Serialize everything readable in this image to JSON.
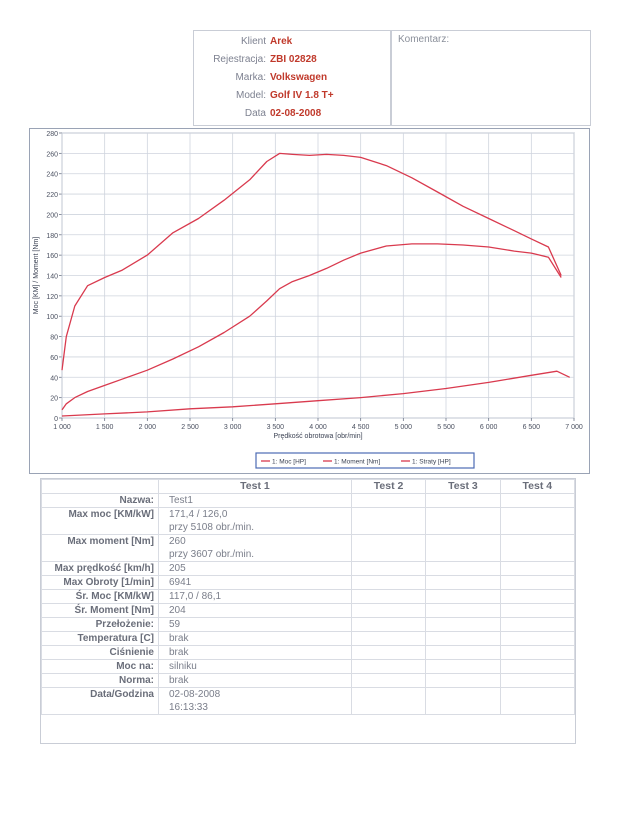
{
  "header": {
    "rows": [
      {
        "label": "Klient",
        "value": "Arek"
      },
      {
        "label": "Rejestracja:",
        "value": "ZBI 02828"
      },
      {
        "label": "Marka:",
        "value": "Volkswagen"
      },
      {
        "label": "Model:",
        "value": "Golf IV 1.8 T+"
      },
      {
        "label": "Data",
        "value": "02-08-2008"
      }
    ],
    "comment_label": "Komentarz:"
  },
  "chart_data": {
    "type": "line",
    "xlabel": "Prędkość obrotowa [obr/min]",
    "ylabel": "Moc [KM] / Moment [Nm]",
    "xlim": [
      1000,
      7000
    ],
    "ylim": [
      0,
      280
    ],
    "x_ticks": [
      1000,
      1500,
      2000,
      2500,
      3000,
      3500,
      4000,
      4500,
      5000,
      5500,
      6000,
      6500,
      7000
    ],
    "x_tick_labels": [
      "1 000",
      "1 500",
      "2 000",
      "2 500",
      "3 000",
      "3 500",
      "4 000",
      "4 500",
      "5 000",
      "5 500",
      "6 000",
      "6 500",
      "7 000"
    ],
    "y_ticks": [
      0,
      20,
      40,
      60,
      80,
      100,
      120,
      140,
      160,
      180,
      200,
      220,
      240,
      260,
      280
    ],
    "grid": true,
    "legend_position": "bottom",
    "line_color": "#d93a4e",
    "series": [
      {
        "name": "1: Moc [HP]",
        "x": [
          1000,
          1050,
          1150,
          1300,
          1500,
          1700,
          2000,
          2300,
          2600,
          2900,
          3200,
          3400,
          3550,
          3700,
          3900,
          4100,
          4300,
          4500,
          4800,
          5100,
          5400,
          5700,
          6000,
          6300,
          6500,
          6700,
          6850
        ],
        "y": [
          8,
          14,
          20,
          26,
          32,
          38,
          47,
          58,
          70,
          84,
          100,
          115,
          127,
          134,
          140,
          147,
          155,
          162,
          169,
          171,
          171,
          170,
          168,
          164,
          162,
          158,
          138
        ]
      },
      {
        "name": "1: Moment [Nm]",
        "x": [
          1000,
          1050,
          1150,
          1300,
          1500,
          1700,
          2000,
          2300,
          2600,
          2900,
          3200,
          3400,
          3550,
          3700,
          3900,
          4100,
          4300,
          4500,
          4800,
          5100,
          5400,
          5700,
          6000,
          6300,
          6500,
          6700,
          6850
        ],
        "y": [
          47,
          80,
          110,
          130,
          138,
          145,
          160,
          182,
          196,
          214,
          234,
          252,
          260,
          259,
          258,
          259,
          258,
          256,
          248,
          236,
          222,
          208,
          196,
          184,
          176,
          168,
          140
        ]
      },
      {
        "name": "1: Straty [HP]",
        "x": [
          1000,
          1500,
          2000,
          2500,
          3000,
          3500,
          4000,
          4500,
          5000,
          5500,
          6000,
          6500,
          6800,
          6950
        ],
        "y": [
          2,
          4,
          6,
          9,
          11,
          14,
          17,
          20,
          24,
          29,
          35,
          42,
          46,
          40
        ]
      }
    ]
  },
  "results": {
    "headers": [
      "Test 1",
      "Test 2",
      "Test 3",
      "Test 4"
    ],
    "rows": [
      {
        "label": "Nazwa:",
        "value": "Test1"
      },
      {
        "label": "Max moc [KM/kW]",
        "value": "171,4 / 126,0",
        "value2": "przy 5108 obr./min."
      },
      {
        "label": "Max moment [Nm]",
        "value": "260",
        "value2": "przy 3607 obr./min."
      },
      {
        "label": "Max prędkość [km/h]",
        "value": "205"
      },
      {
        "label": "Max Obroty [1/min]",
        "value": "6941"
      },
      {
        "label": "Śr. Moc [KM/kW]",
        "value": "117,0 / 86,1"
      },
      {
        "label": "Śr. Moment [Nm]",
        "value": "204"
      },
      {
        "label": "Przełożenie:",
        "value": "59"
      },
      {
        "label": "Temperatura [C]",
        "value": "brak"
      },
      {
        "label": "Ciśnienie",
        "value": "brak"
      },
      {
        "label": "Moc na:",
        "value": "silniku"
      },
      {
        "label": "Norma:",
        "value": "brak"
      },
      {
        "label": "Data/Godzina",
        "value": "02-08-2008",
        "value2": "16:13:33"
      }
    ]
  }
}
